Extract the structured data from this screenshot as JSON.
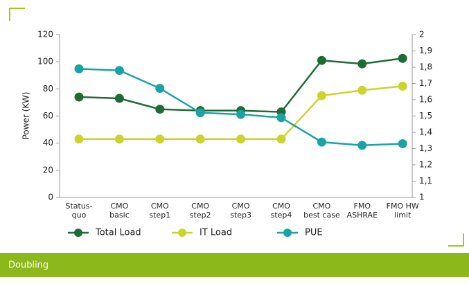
{
  "chart_data": {
    "type": "line",
    "ylabel": "Power (KW)",
    "categories": [
      [
        "Status-",
        "quo"
      ],
      [
        "CMO",
        "basic"
      ],
      [
        "CMO",
        "step1"
      ],
      [
        "CMO",
        "step2"
      ],
      [
        "CMO",
        "step3"
      ],
      [
        "CMO",
        "step4"
      ],
      [
        "CMO",
        "best case"
      ],
      [
        "FMO",
        "ASHRAE"
      ],
      [
        "FMO HW",
        "limit"
      ]
    ],
    "series": [
      {
        "name": "Total Load",
        "color": "#1f6b35",
        "values": [
          74,
          73,
          65,
          64,
          64,
          63,
          101,
          98.5,
          102.5
        ]
      },
      {
        "name": "IT Load",
        "color": "#c9d52b",
        "values": [
          43,
          43,
          43,
          43,
          43,
          43,
          75,
          79,
          82
        ]
      },
      {
        "name": "PUE",
        "color": "#1ba3a3",
        "axis": "y2",
        "values": [
          1.79,
          1.78,
          1.67,
          1.52,
          1.51,
          1.49,
          1.34,
          1.32,
          1.33
        ]
      }
    ],
    "ylim": [
      0,
      120
    ],
    "yticks": [
      0,
      20,
      40,
      60,
      80,
      100,
      120
    ],
    "y2lim": [
      1,
      2
    ],
    "y2ticks": [
      1,
      {
        "value": 1.1,
        "label": "1,1"
      },
      {
        "value": 1.2,
        "label": "1,2"
      },
      {
        "value": 1.3,
        "label": "1,3"
      },
      {
        "value": 1.4,
        "label": "1,4"
      },
      {
        "value": 1.5,
        "label": "1,5"
      },
      {
        "value": 1.6,
        "label": "1,6"
      },
      {
        "value": 1.7,
        "label": "1,7"
      },
      {
        "value": 1.8,
        "label": "1,8"
      },
      {
        "value": 1.9,
        "label": "1,9"
      },
      2
    ],
    "grid": false,
    "legend": "bottom",
    "footer": "Doubling"
  }
}
